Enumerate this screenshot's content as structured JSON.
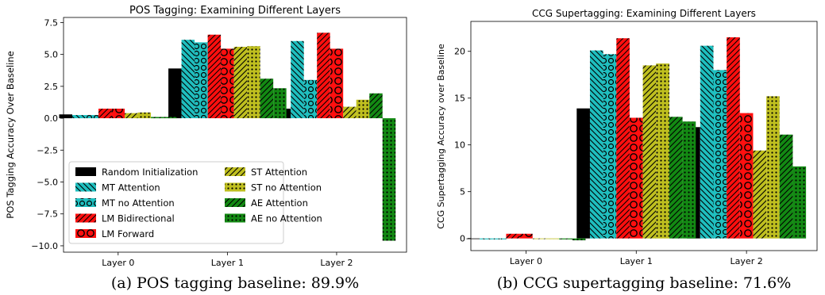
{
  "chart_data": [
    {
      "type": "bar",
      "title": "POS Tagging: Examining Different Layers",
      "xlabel": "",
      "ylabel": "POS Tagging Accuracy Over Baseline",
      "categories": [
        "Layer 0",
        "Layer 1",
        "Layer 2"
      ],
      "ylim": [
        -10.5,
        7.9
      ],
      "yticks": [
        -10.0,
        -7.5,
        -5.0,
        -2.5,
        0.0,
        2.5,
        5.0,
        7.5
      ],
      "ytick_labels": [
        "−10.0",
        "−7.5",
        "−5.0",
        "−2.5",
        "0.0",
        "2.5",
        "5.0",
        "7.5"
      ],
      "legend": "lower-left",
      "grid": false,
      "series": [
        {
          "name": "Random Initialization",
          "values": [
            0.3,
            3.9,
            0.75
          ]
        },
        {
          "name": "MT Attention",
          "values": [
            0.25,
            6.15,
            6.05
          ]
        },
        {
          "name": "MT no Attention",
          "values": [
            0.25,
            5.95,
            3.0
          ]
        },
        {
          "name": "LM Bidirectional",
          "values": [
            0.75,
            6.55,
            6.7
          ]
        },
        {
          "name": "LM Forward",
          "values": [
            0.75,
            5.45,
            5.45
          ]
        },
        {
          "name": "ST Attention",
          "values": [
            0.4,
            5.6,
            0.9
          ]
        },
        {
          "name": "ST no Attention",
          "values": [
            0.45,
            5.65,
            1.45
          ]
        },
        {
          "name": "AE Attention",
          "values": [
            0.1,
            3.1,
            1.95
          ]
        },
        {
          "name": "AE no Attention",
          "values": [
            0.1,
            2.35,
            -9.6
          ]
        }
      ]
    },
    {
      "type": "bar",
      "title": "CCG Supertagging: Examining Different Layers",
      "xlabel": "",
      "ylabel": "CCG Supertagging Accuracy over Baseline",
      "categories": [
        "Layer 0",
        "Layer 1",
        "Layer 2"
      ],
      "ylim": [
        -1.3,
        23.2
      ],
      "yticks": [
        0,
        5,
        10,
        15,
        20
      ],
      "ytick_labels": [
        "0",
        "5",
        "10",
        "15",
        "20"
      ],
      "grid": false,
      "series": [
        {
          "name": "Random Initialization",
          "values": [
            0.0,
            13.9,
            11.9
          ]
        },
        {
          "name": "MT Attention",
          "values": [
            -0.1,
            20.1,
            20.6
          ]
        },
        {
          "name": "MT no Attention",
          "values": [
            -0.1,
            19.7,
            18.0
          ]
        },
        {
          "name": "LM Bidirectional",
          "values": [
            0.5,
            21.4,
            21.5
          ]
        },
        {
          "name": "LM Forward",
          "values": [
            0.5,
            12.9,
            13.4
          ]
        },
        {
          "name": "ST Attention",
          "values": [
            0.0,
            18.5,
            9.4
          ]
        },
        {
          "name": "ST no Attention",
          "values": [
            0.0,
            18.7,
            15.2
          ]
        },
        {
          "name": "AE Attention",
          "values": [
            -0.1,
            13.0,
            11.1
          ]
        },
        {
          "name": "AE no Attention",
          "values": [
            -0.2,
            12.5,
            7.7
          ]
        }
      ]
    }
  ],
  "series_style": [
    {
      "color": "#000000",
      "pattern": "solid"
    },
    {
      "color": "#1fbfbf",
      "pattern": "backslash"
    },
    {
      "color": "#1fbfbf",
      "pattern": "circles"
    },
    {
      "color": "#ff0f0f",
      "pattern": "slash"
    },
    {
      "color": "#ff0f0f",
      "pattern": "bigcircles"
    },
    {
      "color": "#bfbf1f",
      "pattern": "slash"
    },
    {
      "color": "#bfbf1f",
      "pattern": "dots"
    },
    {
      "color": "#138913",
      "pattern": "slash"
    },
    {
      "color": "#138913",
      "pattern": "dots"
    }
  ],
  "captions": [
    "(a) POS tagging baseline: 89.9%",
    "(b) CCG supertagging baseline: 71.6%"
  ]
}
